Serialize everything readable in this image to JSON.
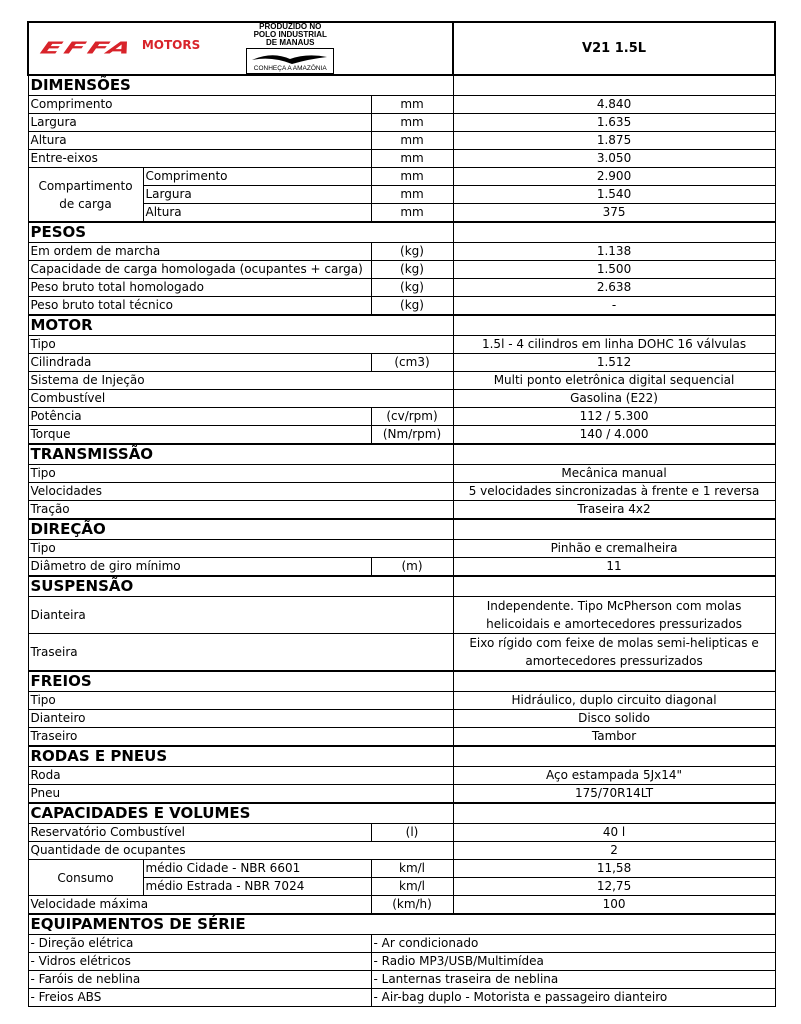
{
  "header": {
    "brand": "EFFA",
    "brand_suffix": "MOTORS",
    "badge_lines": [
      "PRODUZIDO NO",
      "POLO INDUSTRIAL",
      "DE MANAUS"
    ],
    "badge_footer": "CONHEÇA A AMAZÔNIA",
    "model": "V21 1.5L",
    "brand_color": "#d8232a"
  },
  "sections": [
    {
      "title": "DIMENSÕES",
      "rows": [
        {
          "label": "Comprimento",
          "unit": "mm",
          "value": "4.840"
        },
        {
          "label": "Largura",
          "unit": "mm",
          "value": "1.635"
        },
        {
          "label": "Altura",
          "unit": "mm",
          "value": "1.875"
        },
        {
          "label": "Entre-eixos",
          "unit": "mm",
          "value": "3.050"
        },
        {
          "group": "Compartimento de carga",
          "sub": [
            {
              "label": "Comprimento",
              "unit": "mm",
              "value": "2.900"
            },
            {
              "label": "Largura",
              "unit": "mm",
              "value": "1.540"
            },
            {
              "label": "Altura",
              "unit": "mm",
              "value": "375"
            }
          ]
        }
      ]
    },
    {
      "title": "PESOS",
      "rows": [
        {
          "label": "Em ordem de marcha",
          "unit": "(kg)",
          "value": "1.138"
        },
        {
          "label": "Capacidade de carga homologada (ocupantes + carga)",
          "unit": "(kg)",
          "value": "1.500"
        },
        {
          "label": "Peso bruto total homologado",
          "unit": "(kg)",
          "value": "2.638"
        },
        {
          "label": "Peso bruto total técnico",
          "unit": "(kg)",
          "value": "-"
        }
      ]
    },
    {
      "title": "MOTOR",
      "rows": [
        {
          "label": "Tipo",
          "value": "1.5l - 4 cilindros em linha DOHC 16 válvulas"
        },
        {
          "label": "Cilindrada",
          "unit": "(cm3)",
          "value": "1.512"
        },
        {
          "label": "Sistema de Injeção",
          "value": "Multi ponto eletrônica digital sequencial"
        },
        {
          "label": "Combustível",
          "value": "Gasolina (E22)"
        },
        {
          "label": "Potência",
          "unit": "(cv/rpm)",
          "value": "112 / 5.300"
        },
        {
          "label": "Torque",
          "unit": "(Nm/rpm)",
          "value": "140 / 4.000"
        }
      ]
    },
    {
      "title": "TRANSMISSÃO",
      "rows": [
        {
          "label": "Tipo",
          "value": "Mecânica manual"
        },
        {
          "label": "Velocidades",
          "value": "5 velocidades sincronizadas à frente e 1 reversa"
        },
        {
          "label": "Tração",
          "value": "Traseira 4x2"
        }
      ]
    },
    {
      "title": "DIREÇÃO",
      "rows": [
        {
          "label": "Tipo",
          "value": "Pinhão e cremalheira"
        },
        {
          "label": "Diâmetro de giro mínimo",
          "unit": "(m)",
          "value": "11"
        }
      ]
    },
    {
      "title": "SUSPENSÃO",
      "rows": [
        {
          "label": "Dianteira",
          "value": "Independente. Tipo McPherson com molas helicoidais e amortecedores pressurizados",
          "tall": true
        },
        {
          "label": "Traseira",
          "value": "Eixo rígido com feixe de molas semi-helipticas e amortecedores pressurizados",
          "tall": true
        }
      ]
    },
    {
      "title": "FREIOS",
      "rows": [
        {
          "label": "Tipo",
          "value": "Hidráulico, duplo circuito diagonal"
        },
        {
          "label": "Dianteiro",
          "value": "Disco solido"
        },
        {
          "label": "Traseiro",
          "value": "Tambor"
        }
      ]
    },
    {
      "title": "RODAS E PNEUS",
      "rows": [
        {
          "label": "Roda",
          "value": "Aço estampada 5Jx14\""
        },
        {
          "label": "Pneu",
          "value": "175/70R14LT"
        }
      ]
    },
    {
      "title": "CAPACIDADES E VOLUMES",
      "rows": [
        {
          "label": "Reservatório Combustível",
          "unit": "(l)",
          "value": "40 l"
        },
        {
          "label": "Quantidade de ocupantes",
          "value": "2"
        },
        {
          "group": "Consumo",
          "sub": [
            {
              "label": "médio Cidade - NBR 6601",
              "unit": "km/l",
              "value": "11,58"
            },
            {
              "label": "médio Estrada - NBR 7024",
              "unit": "km/l",
              "value": "12,75"
            }
          ]
        },
        {
          "label": "Velocidade máxima",
          "unit": "(km/h)",
          "value": "100"
        }
      ]
    }
  ],
  "equipment": {
    "title": "EQUIPAMENTOS DE SÉRIE",
    "rows": [
      [
        "- Direção elétrica",
        "- Ar condicionado"
      ],
      [
        "- Vidros elétricos",
        "- Radio MP3/USB/Multimídea"
      ],
      [
        "- Faróis de neblina",
        "- Lanternas traseira de neblina"
      ],
      [
        "- Freios ABS",
        "- Air-bag duplo - Motorista e passageiro dianteiro"
      ]
    ]
  }
}
